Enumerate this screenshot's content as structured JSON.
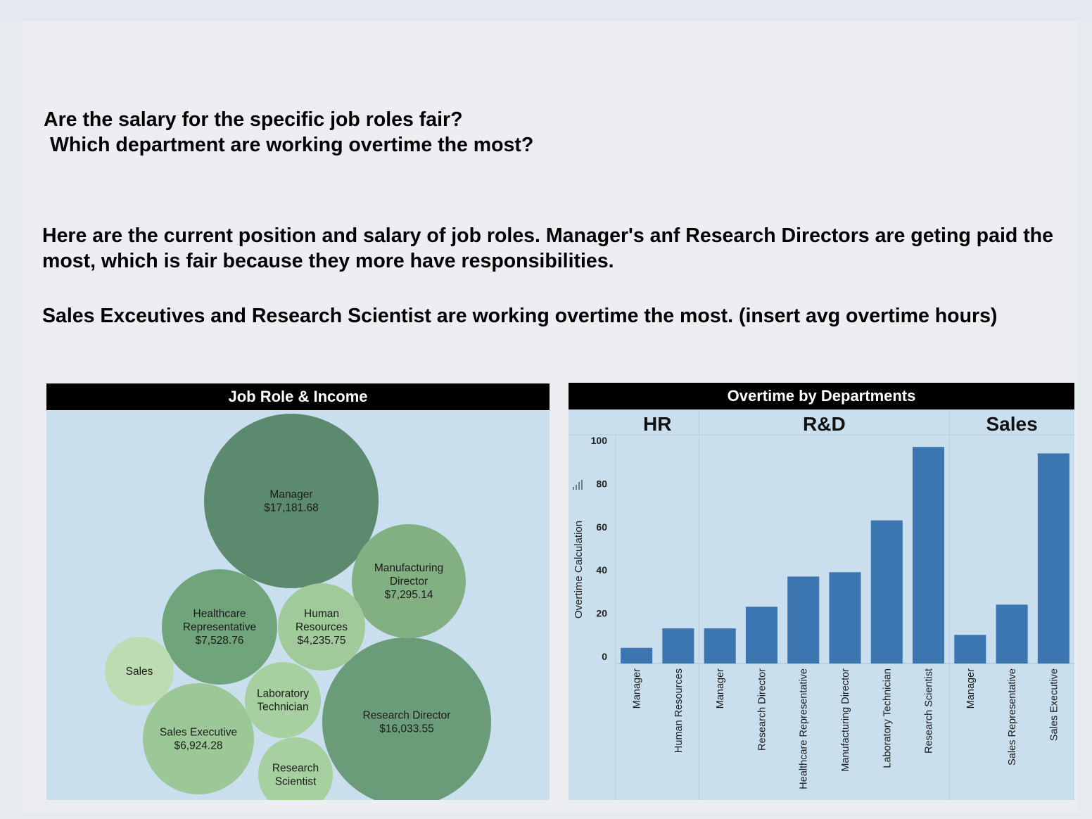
{
  "story": {
    "question_line1": "Are the salary for the specific job roles fair?",
    "question_line2": "Which department are working overtime the most?",
    "paragraph1": "Here are the current position and salary of job roles. Manager's anf Research Directors are geting paid the most, which is fair because they more have responsibilities.",
    "paragraph2": "Sales Exceutives and Research Scientist are working overtime the most. (insert avg overtime hours)"
  },
  "chart_data": [
    {
      "type": "bubble",
      "title": "Job Role & Income",
      "bubbles": [
        {
          "label": "Manager",
          "value_label": "$17,181.68",
          "value": 17181.68,
          "color": "#5b8a6e"
        },
        {
          "label": "Research Director",
          "value_label": "$16,033.55",
          "value": 16033.55,
          "color": "#6a9c7a"
        },
        {
          "label": "Healthcare Representative",
          "value_label": "$7,528.76",
          "value": 7528.76,
          "color": "#70a47a"
        },
        {
          "label": "Manufacturing Director",
          "value_label": "$7,295.14",
          "value": 7295.14,
          "color": "#82b082"
        },
        {
          "label": "Sales Executive",
          "value_label": "$6,924.28",
          "value": 6924.28,
          "color": "#9bc896"
        },
        {
          "label": "Human Resources",
          "value_label": "$4,235.75",
          "value": 4235.75,
          "color": "#a0ca9a"
        },
        {
          "label": "Laboratory Technician",
          "value_label": "",
          "color": "#a6d09f"
        },
        {
          "label": "Research Scientist",
          "value_label": "",
          "color": "#a6d09f"
        },
        {
          "label": "Sales",
          "value_label": "",
          "color": "#bcdcb2"
        }
      ]
    },
    {
      "type": "bar",
      "title": "Overtime by Departments",
      "ylabel": "Overtime Calculation",
      "ylim": [
        0,
        100
      ],
      "yticks": [
        0,
        20,
        40,
        60,
        80,
        100
      ],
      "bar_color": "#3b76b0",
      "departments": [
        {
          "name": "HR",
          "categories": [
            "Manager",
            "Human Resources"
          ],
          "values": [
            4,
            13
          ]
        },
        {
          "name": "R&D",
          "categories": [
            "Manager",
            "Research Director",
            "Healthcare Representative",
            "Manufacturing Director",
            "Laboratory Technician",
            "Research Scientist"
          ],
          "values": [
            13,
            23,
            37,
            39,
            63,
            97
          ]
        },
        {
          "name": "Sales",
          "categories": [
            "Manager",
            "Sales Representative",
            "Sales Executive"
          ],
          "values": [
            10,
            24,
            94
          ]
        }
      ]
    }
  ]
}
